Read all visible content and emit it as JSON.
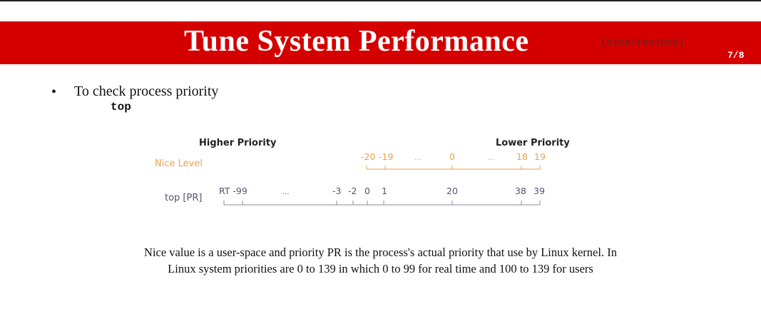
{
  "slide": {
    "title": "Tune System Performance",
    "subtitle": "(nice/renince)",
    "page": "7/8"
  },
  "bullet": {
    "marker": "•",
    "text": "To check process priority",
    "command": "top"
  },
  "diagram": {
    "higher_label": "Higher Priority",
    "lower_label": "Lower Priority",
    "nice_label": "Nice Level",
    "pr_label": "top [PR]",
    "nice_color": "#e8a24a",
    "pr_color": "#5b4f6e",
    "nice_ticks": [
      "-20",
      "-19",
      "...",
      "0",
      "...",
      "18",
      "19"
    ],
    "pr_ticks": [
      "RT -99",
      "...",
      "-3",
      "-2",
      "0",
      "1",
      "20",
      "38",
      "39"
    ]
  },
  "note": {
    "line1": "Nice value is a user-space and priority PR is the process's actual priority that use by Linux kernel. In",
    "line2": "Linux system priorities are 0 to 139 in which 0 to 99 for real time and 100 to 139 for users"
  }
}
